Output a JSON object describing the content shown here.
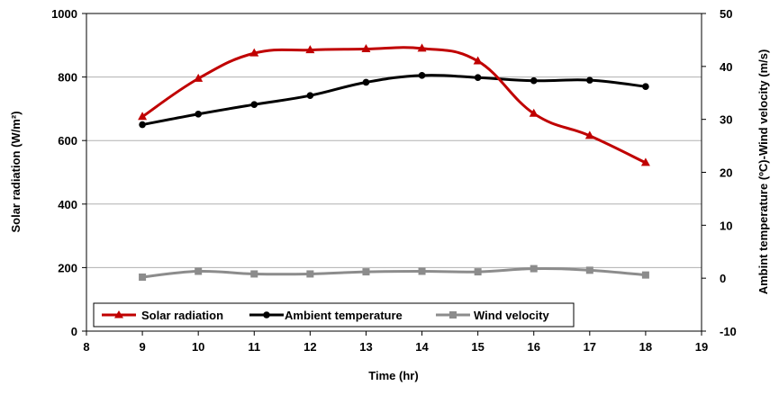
{
  "chart_data": {
    "type": "line",
    "x": [
      9,
      10,
      11,
      12,
      13,
      14,
      15,
      16,
      17,
      18
    ],
    "xlabel": "Time (hr)",
    "xlim": [
      8,
      19
    ],
    "xticks": [
      "8",
      "9",
      "10",
      "11",
      "12",
      "13",
      "14",
      "15",
      "16",
      "17",
      "18",
      "19"
    ],
    "ylabel_left": "Solar radiation (W/m²)",
    "ylim_left": [
      0,
      1000
    ],
    "yticks_left": [
      "0",
      "200",
      "400",
      "600",
      "800",
      "1000"
    ],
    "ylabel_right": "Ambint temperature (ºC)-Wind velocity (m/s)",
    "ylim_right": [
      -10,
      50
    ],
    "yticks_right": [
      "-10",
      "0",
      "10",
      "20",
      "30",
      "40",
      "50"
    ],
    "grid": "horizontal",
    "legend_position": "bottom-left",
    "series": [
      {
        "name": "Solar radiation",
        "axis": "left",
        "color": "#c00000",
        "marker": "triangle",
        "values": [
          675,
          795,
          875,
          885,
          888,
          890,
          850,
          685,
          615,
          530
        ]
      },
      {
        "name": "Ambient temperature",
        "axis": "right",
        "color": "#000000",
        "marker": "circle",
        "values": [
          29,
          31,
          32.8,
          34.5,
          37,
          38.3,
          37.9,
          37.3,
          37.4,
          36.2
        ]
      },
      {
        "name": "Wind velocity",
        "axis": "right",
        "color": "#8c8c8c",
        "marker": "square",
        "values": [
          0.2,
          1.3,
          0.8,
          0.8,
          1.2,
          1.3,
          1.2,
          1.8,
          1.5,
          0.6
        ]
      }
    ]
  }
}
